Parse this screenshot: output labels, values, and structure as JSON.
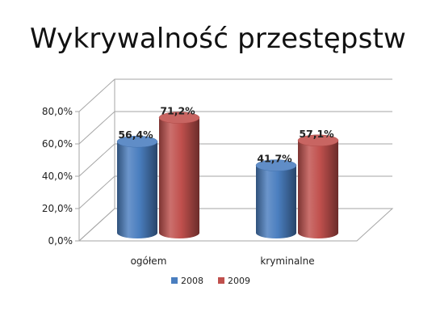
{
  "chart_data": {
    "type": "bar",
    "title": "Wykrywalność przestępstw",
    "categories": [
      "ogółem",
      "kryminalne"
    ],
    "series": [
      {
        "name": "2008",
        "values": [
          56.4,
          41.7
        ],
        "labels": [
          "56,4%",
          "41,7%"
        ],
        "color": "#4a7ebf"
      },
      {
        "name": "2009",
        "values": [
          71.2,
          57.1
        ],
        "labels": [
          "71,2%",
          "57,1%"
        ],
        "color": "#c0504d"
      }
    ],
    "ylim": [
      0,
      80
    ],
    "yticks": [
      0,
      20,
      40,
      60,
      80
    ],
    "ytick_labels": [
      "0,0%",
      "20,0%",
      "40,0%",
      "60,0%",
      "80,0%"
    ],
    "grid": true,
    "style": "3d-cylinder",
    "legend_position": "bottom",
    "xlabel": "",
    "ylabel": ""
  }
}
